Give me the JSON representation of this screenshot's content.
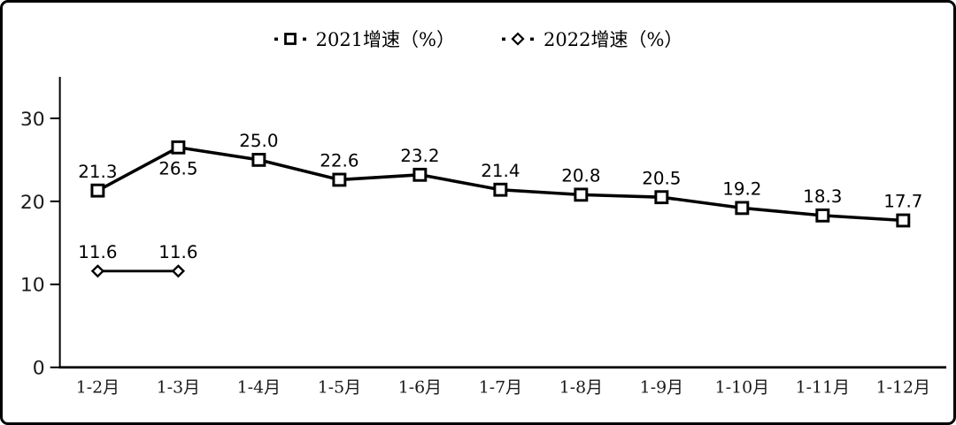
{
  "legend": {
    "items": [
      {
        "label": "2021增速（%）",
        "marker": "square"
      },
      {
        "label": "2022增速（%）",
        "marker": "diamond"
      }
    ]
  },
  "chart_data": {
    "type": "line",
    "title": "",
    "xlabel": "",
    "ylabel": "",
    "categories": [
      "1-2月",
      "1-3月",
      "1-4月",
      "1-5月",
      "1-6月",
      "1-7月",
      "1-8月",
      "1-9月",
      "1-10月",
      "1-11月",
      "1-12月"
    ],
    "series": [
      {
        "name": "2021增速（%）",
        "marker": "square",
        "values": [
          21.3,
          26.5,
          25.0,
          22.6,
          23.2,
          21.4,
          20.8,
          20.5,
          19.2,
          18.3,
          17.7
        ],
        "data_labels": [
          "21.3",
          "26.5",
          "25.0",
          "22.6",
          "23.2",
          "21.4",
          "20.8",
          "20.5",
          "19.2",
          "18.3",
          "17.7"
        ],
        "label_positions": [
          "above",
          "below",
          "above",
          "above",
          "above",
          "above",
          "above",
          "above",
          "above",
          "above",
          "above"
        ]
      },
      {
        "name": "2022增速（%）",
        "marker": "diamond",
        "values": [
          11.6,
          11.6
        ],
        "data_labels": [
          "11.6",
          "11.6"
        ],
        "label_positions": [
          "above",
          "above"
        ]
      }
    ],
    "yticks": [
      0,
      10,
      20,
      30
    ],
    "ylim": [
      0,
      35
    ],
    "grid": false,
    "legend_position": "top",
    "colors": {
      "line": "#000000",
      "marker_fill": "#ffffff",
      "background": "#ffffff",
      "border": "#000000",
      "text": "#000000"
    }
  }
}
